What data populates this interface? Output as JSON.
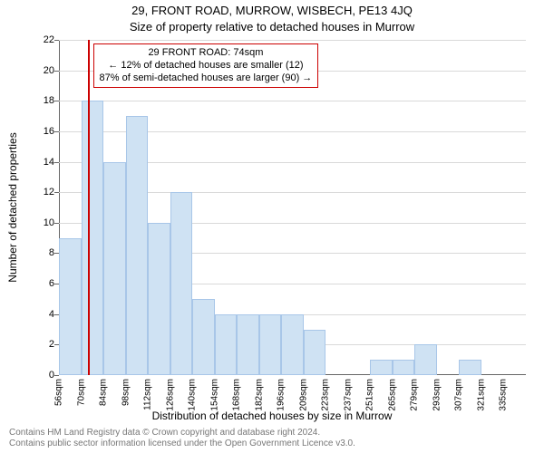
{
  "title": "29, FRONT ROAD, MURROW, WISBECH, PE13 4JQ",
  "subtitle": "Size of property relative to detached houses in Murrow",
  "chart": {
    "type": "histogram",
    "ylabel": "Number of detached properties",
    "xlabel": "Distribution of detached houses by size in Murrow",
    "label_fontsize": 12,
    "title_fontsize": 13,
    "ylim": [
      0,
      22
    ],
    "ytick_step": 2,
    "grid_color": "#d9d9d9",
    "axis_color": "#666666",
    "background_color": "#ffffff",
    "bar_fill": "#cfe2f3",
    "bar_border": "#a8c6e8",
    "bar_gap_ratio": 0.0,
    "categories_sqm": [
      56,
      70,
      84,
      98,
      112,
      126,
      140,
      154,
      168,
      182,
      196,
      209,
      223,
      237,
      251,
      265,
      279,
      293,
      307,
      321,
      335
    ],
    "x_tick_suffix": "sqm",
    "values": [
      9,
      18,
      14,
      17,
      10,
      12,
      5,
      4,
      4,
      4,
      4,
      3,
      0,
      0,
      1,
      1,
      2,
      0,
      1,
      0,
      0
    ],
    "reference_line": {
      "value_sqm": 74,
      "color": "#cc0000",
      "callout_border": "#cc0000",
      "callout_bg": "#ffffff",
      "lines": [
        "29 FRONT ROAD: 74sqm",
        "← 12% of detached houses are smaller (12)",
        "87% of semi-detached houses are larger (90) →"
      ]
    }
  },
  "footer": {
    "line1": "Contains HM Land Registry data © Crown copyright and database right 2024.",
    "line2": "Contains public sector information licensed under the Open Government Licence v3.0.",
    "color": "#777777",
    "fontsize": 10
  }
}
